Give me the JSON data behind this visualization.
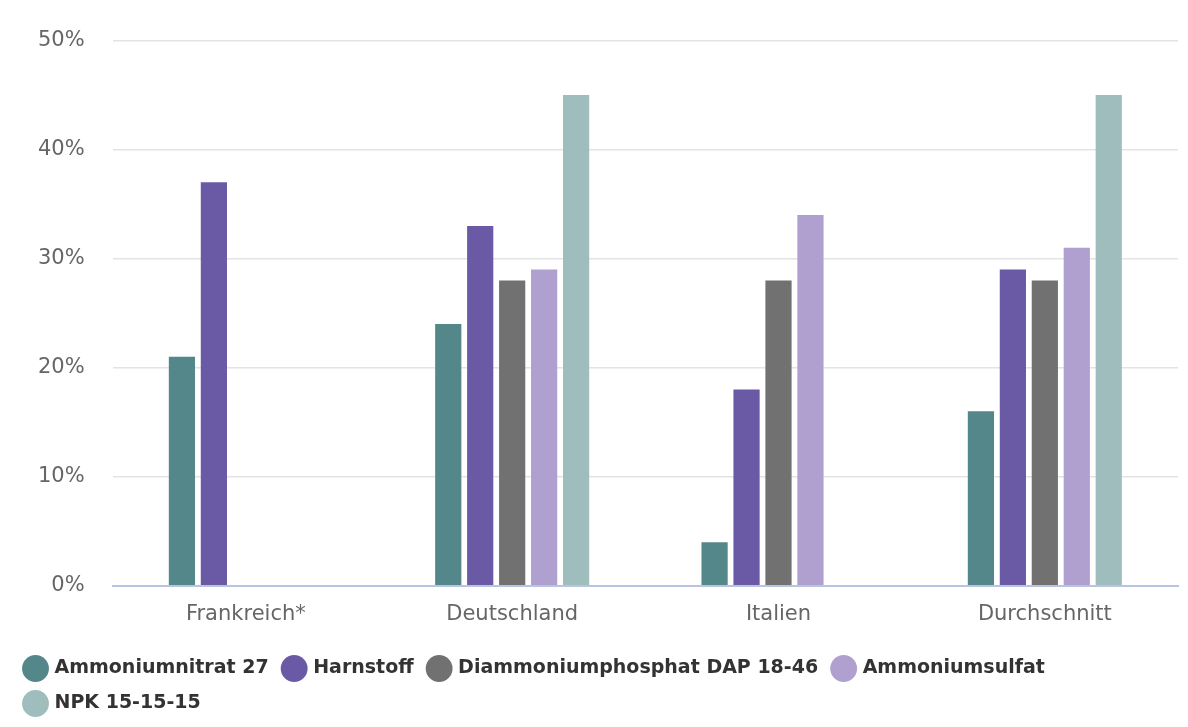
{
  "chart_data": {
    "type": "bar",
    "categories": [
      "Frankreich*",
      "Deutschland",
      "Italien",
      "Durchschnitt"
    ],
    "series": [
      {
        "name": "Ammoniumnitrat 27",
        "color": "#54878a",
        "values": [
          21,
          24,
          4,
          16
        ]
      },
      {
        "name": "Harnstoff",
        "color": "#6a5aa5",
        "values": [
          37,
          33,
          18,
          29
        ]
      },
      {
        "name": "Diammoniumphosphat DAP 18-46",
        "color": "#717171",
        "values": [
          null,
          28,
          28,
          28
        ]
      },
      {
        "name": "Ammoniumsulfat",
        "color": "#b0a0cf",
        "values": [
          null,
          29,
          34,
          31
        ]
      },
      {
        "name": "NPK 15-15-15",
        "color": "#9fbdbd",
        "values": [
          null,
          45,
          null,
          45
        ]
      }
    ],
    "ylim": [
      0,
      50
    ],
    "yticks": [
      {
        "value": 0,
        "label": "0%"
      },
      {
        "value": 10,
        "label": "10%"
      },
      {
        "value": 20,
        "label": "20%"
      },
      {
        "value": 30,
        "label": "30%"
      },
      {
        "value": 40,
        "label": "40%"
      },
      {
        "value": 50,
        "label": "50%"
      }
    ],
    "grid": "y",
    "legend": "bottom left"
  }
}
